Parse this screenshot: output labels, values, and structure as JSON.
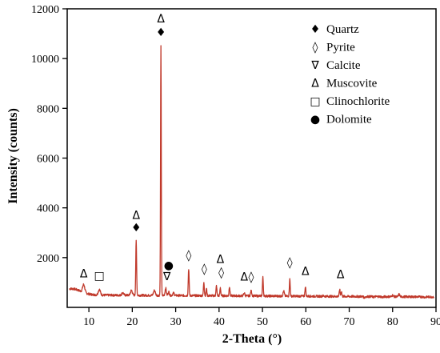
{
  "chart_data": {
    "type": "line",
    "title": "",
    "xlabel": "2-Theta (°)",
    "ylabel": "Intensity (counts)",
    "xlim": [
      5,
      90
    ],
    "ylim": [
      0,
      12000
    ],
    "x_ticks": [
      10,
      20,
      30,
      40,
      50,
      60,
      70,
      80,
      90
    ],
    "y_ticks": [
      2000,
      4000,
      6000,
      8000,
      10000,
      12000
    ],
    "grid": false,
    "legend_position": "top-right",
    "line_color": "#c0392b",
    "baseline": 500,
    "peaks": [
      {
        "x": 8.8,
        "y": 820,
        "w": 0.35
      },
      {
        "x": 12.4,
        "y": 720,
        "w": 0.35
      },
      {
        "x": 17.8,
        "y": 600,
        "w": 0.3
      },
      {
        "x": 19.8,
        "y": 700,
        "w": 0.3
      },
      {
        "x": 20.9,
        "y": 2680,
        "w": 0.14
      },
      {
        "x": 25.1,
        "y": 700,
        "w": 0.3
      },
      {
        "x": 26.6,
        "y": 10500,
        "w": 0.12
      },
      {
        "x": 27.7,
        "y": 800,
        "w": 0.2
      },
      {
        "x": 28.4,
        "y": 650,
        "w": 0.2
      },
      {
        "x": 29.5,
        "y": 600,
        "w": 0.25
      },
      {
        "x": 33.0,
        "y": 1580,
        "w": 0.14
      },
      {
        "x": 36.5,
        "y": 1050,
        "w": 0.14
      },
      {
        "x": 37.1,
        "y": 780,
        "w": 0.14
      },
      {
        "x": 39.4,
        "y": 900,
        "w": 0.14
      },
      {
        "x": 40.3,
        "y": 820,
        "w": 0.14
      },
      {
        "x": 42.4,
        "y": 880,
        "w": 0.14
      },
      {
        "x": 45.8,
        "y": 620,
        "w": 0.2
      },
      {
        "x": 47.4,
        "y": 700,
        "w": 0.2
      },
      {
        "x": 50.1,
        "y": 1250,
        "w": 0.14
      },
      {
        "x": 54.9,
        "y": 700,
        "w": 0.2
      },
      {
        "x": 56.3,
        "y": 1180,
        "w": 0.14
      },
      {
        "x": 59.9,
        "y": 900,
        "w": 0.14
      },
      {
        "x": 64.0,
        "y": 520,
        "w": 0.25
      },
      {
        "x": 67.8,
        "y": 780,
        "w": 0.14
      },
      {
        "x": 68.2,
        "y": 700,
        "w": 0.14
      },
      {
        "x": 73.5,
        "y": 460,
        "w": 0.25
      },
      {
        "x": 75.6,
        "y": 480,
        "w": 0.25
      },
      {
        "x": 77.7,
        "y": 470,
        "w": 0.25
      },
      {
        "x": 80.0,
        "y": 560,
        "w": 0.2
      },
      {
        "x": 81.5,
        "y": 600,
        "w": 0.2
      },
      {
        "x": 83.8,
        "y": 500,
        "w": 0.25
      },
      {
        "x": 87.5,
        "y": 480,
        "w": 0.25
      }
    ],
    "legend": [
      {
        "symbol": "♦",
        "label": "Quartz"
      },
      {
        "symbol": "◊",
        "label": "Pyrite"
      },
      {
        "symbol": "∇",
        "label": "Calcite"
      },
      {
        "symbol": "Δ",
        "label": "Muscovite"
      },
      {
        "symbol": "□",
        "label": "Clinochlorite"
      },
      {
        "symbol": "●",
        "label": "Dolomite"
      }
    ],
    "annotations": [
      {
        "symbol": "Δ",
        "x": 8.8,
        "y": 1200
      },
      {
        "symbol": "□",
        "x": 12.4,
        "y": 1120
      },
      {
        "symbol": "♦",
        "x": 20.9,
        "y": 3050
      },
      {
        "symbol": "Δ",
        "x": 20.9,
        "y": 3550
      },
      {
        "symbol": "♦",
        "x": 26.6,
        "y": 10900
      },
      {
        "symbol": "Δ",
        "x": 26.6,
        "y": 11450
      },
      {
        "symbol": "●",
        "x": 28.4,
        "y": 1550
      },
      {
        "symbol": "∇",
        "x": 28.0,
        "y": 1100
      },
      {
        "symbol": "◊",
        "x": 33.0,
        "y": 1950
      },
      {
        "symbol": "◊",
        "x": 36.6,
        "y": 1400
      },
      {
        "symbol": "Δ",
        "x": 40.3,
        "y": 1780
      },
      {
        "symbol": "◊",
        "x": 40.5,
        "y": 1250
      },
      {
        "symbol": "Δ",
        "x": 45.8,
        "y": 1080
      },
      {
        "symbol": "◊",
        "x": 47.4,
        "y": 1080
      },
      {
        "symbol": "◊",
        "x": 56.3,
        "y": 1650
      },
      {
        "symbol": "Δ",
        "x": 59.9,
        "y": 1300
      },
      {
        "symbol": "Δ",
        "x": 68.0,
        "y": 1180
      }
    ]
  }
}
